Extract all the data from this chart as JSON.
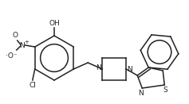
{
  "bg_color": "#ffffff",
  "line_color": "#222222",
  "text_color": "#222222",
  "figsize": [
    2.37,
    1.31
  ],
  "dpi": 100,
  "xlim": [
    0,
    237
  ],
  "ylim": [
    0,
    131
  ],
  "lw": 1.1
}
